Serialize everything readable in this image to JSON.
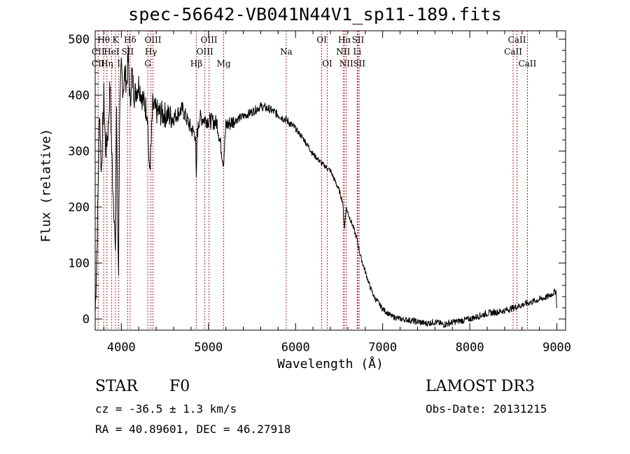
{
  "chart_data": {
    "type": "line",
    "title": "spec-56642-VB041N44V1_sp11-189.fits",
    "xlabel": "Wavelength (Å)",
    "ylabel": "Flux (relative)",
    "xlim": [
      3700,
      9100
    ],
    "ylim": [
      -20,
      515
    ],
    "x_ticks": [
      4000,
      5000,
      6000,
      7000,
      8000,
      9000
    ],
    "y_ticks": [
      0,
      100,
      200,
      300,
      400,
      500
    ],
    "series": [
      {
        "name": "spectrum",
        "x": [
          3700,
          3720,
          3750,
          3770,
          3800,
          3820,
          3850,
          3870,
          3890,
          3900,
          3920,
          3933,
          3945,
          3960,
          3968,
          3980,
          4000,
          4020,
          4040,
          4060,
          4080,
          4101,
          4120,
          4150,
          4200,
          4250,
          4300,
          4320,
          4340,
          4360,
          4400,
          4500,
          4600,
          4700,
          4800,
          4850,
          4861,
          4870,
          4900,
          5000,
          5100,
          5172,
          5200,
          5300,
          5400,
          5500,
          5600,
          5700,
          5800,
          5900,
          6000,
          6100,
          6200,
          6300,
          6400,
          6500,
          6540,
          6563,
          6580,
          6600,
          6650,
          6700,
          6750,
          6800,
          6850,
          6900,
          7000,
          7100,
          7200,
          7300,
          7400,
          7500,
          7600,
          7700,
          7800,
          7900,
          8000,
          8100,
          8200,
          8300,
          8400,
          8500,
          8600,
          8700,
          8800,
          8900,
          8990,
          9000
        ],
        "y": [
          10,
          120,
          380,
          260,
          400,
          300,
          340,
          420,
          300,
          250,
          180,
          100,
          380,
          150,
          90,
          360,
          450,
          410,
          440,
          420,
          470,
          380,
          440,
          400,
          420,
          390,
          370,
          260,
          300,
          380,
          370,
          365,
          360,
          375,
          340,
          330,
          240,
          330,
          360,
          355,
          350,
          280,
          345,
          355,
          362,
          370,
          380,
          375,
          365,
          355,
          340,
          320,
          295,
          278,
          265,
          230,
          210,
          160,
          200,
          190,
          170,
          145,
          110,
          85,
          60,
          40,
          18,
          5,
          0,
          -2,
          -5,
          -8,
          -5,
          -10,
          -6,
          -3,
          0,
          5,
          10,
          12,
          15,
          20,
          25,
          30,
          35,
          40,
          50,
          20
        ]
      }
    ],
    "line_labels": [
      {
        "label": "Hθ",
        "wavelength": 3798,
        "row": 1
      },
      {
        "label": "K",
        "wavelength": 3933,
        "row": 1
      },
      {
        "label": "Hδ",
        "wavelength": 4101,
        "row": 1
      },
      {
        "label": "OIII",
        "wavelength": 4363,
        "row": 1
      },
      {
        "label": "OIII",
        "wavelength": 5007,
        "row": 1
      },
      {
        "label": "OI",
        "wavelength": 6300,
        "row": 1
      },
      {
        "label": "Hα",
        "wavelength": 6563,
        "row": 1
      },
      {
        "label": "SII",
        "wavelength": 6717,
        "row": 1
      },
      {
        "label": "CaII",
        "wavelength": 8542,
        "row": 1
      },
      {
        "label": "CII",
        "wavelength": 3734,
        "row": 2
      },
      {
        "label": "HeI",
        "wavelength": 3888,
        "row": 2
      },
      {
        "label": "SII",
        "wavelength": 4072,
        "row": 2
      },
      {
        "label": "Hγ",
        "wavelength": 4340,
        "row": 2
      },
      {
        "label": "OIII",
        "wavelength": 4959,
        "row": 2
      },
      {
        "label": "Na",
        "wavelength": 5893,
        "row": 2
      },
      {
        "label": "NII",
        "wavelength": 6548,
        "row": 2
      },
      {
        "label": "Li",
        "wavelength": 6708,
        "row": 2
      },
      {
        "label": "CaII",
        "wavelength": 8498,
        "row": 2
      },
      {
        "label": "CII",
        "wavelength": 3734,
        "row": 3
      },
      {
        "label": "Hη",
        "wavelength": 3835,
        "row": 3
      },
      {
        "label": "I",
        "wavelength": 3970,
        "row": 3
      },
      {
        "label": "G",
        "wavelength": 4304,
        "row": 3
      },
      {
        "label": "Hβ",
        "wavelength": 4861,
        "row": 3
      },
      {
        "label": "Mg",
        "wavelength": 5175,
        "row": 3
      },
      {
        "label": "OI",
        "wavelength": 6364,
        "row": 3
      },
      {
        "label": "NII",
        "wavelength": 6583,
        "row": 3
      },
      {
        "label": "SII",
        "wavelength": 6731,
        "row": 3
      },
      {
        "label": "CaII",
        "wavelength": 8662,
        "row": 3
      }
    ],
    "line_markers": [
      3734,
      3798,
      3835,
      3888,
      3933,
      3970,
      4072,
      4101,
      4304,
      4340,
      4363,
      4861,
      4959,
      5007,
      5175,
      5893,
      6300,
      6364,
      6548,
      6563,
      6583,
      6708,
      6717,
      6731,
      8498,
      8542,
      8662
    ],
    "colors": {
      "marker": "#b22222",
      "spectrum": "#000000",
      "axes": "#000000"
    }
  },
  "info": {
    "object_class": "STAR",
    "subclass": "F0",
    "survey": "LAMOST DR3",
    "cz": "cz = -36.5 ± 1.3 km/s",
    "obs_date": "Obs-Date: 20131215",
    "radec": "RA =  40.89601, DEC =  46.27918"
  }
}
